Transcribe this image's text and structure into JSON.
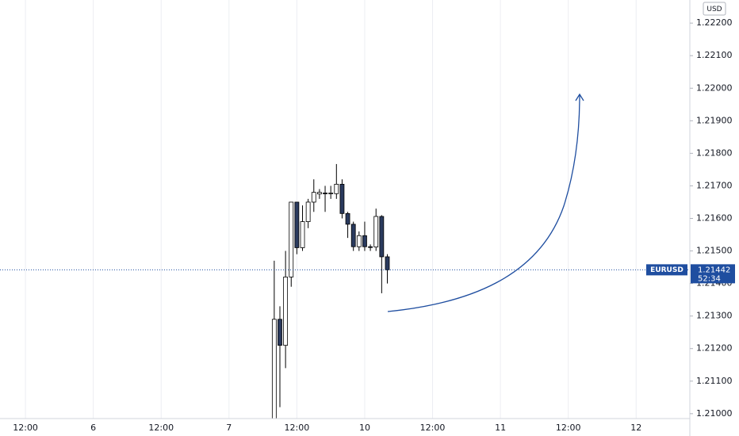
{
  "chart_data": {
    "type": "candlestick",
    "currency": "USD",
    "symbol": "EURUSD",
    "last_price": 1.21442,
    "countdown": "52:34",
    "x": [
      0,
      1,
      2,
      3,
      4,
      5,
      6,
      7,
      8,
      9,
      10,
      11,
      12,
      13,
      14,
      15,
      16,
      17,
      18,
      19,
      20
    ],
    "open": [
      1.2098,
      1.2129,
      1.2121,
      1.2142,
      1.2165,
      1.2151,
      1.2159,
      1.2165,
      1.21675,
      1.21678,
      1.21676,
      1.21676,
      1.21705,
      1.21615,
      1.21582,
      1.21513,
      1.21547,
      1.21513,
      1.21512,
      1.21606,
      1.21482
    ],
    "high": [
      1.2147,
      1.2133,
      1.215,
      1.2165,
      1.2165,
      1.2164,
      1.2166,
      1.2172,
      1.2169,
      1.217,
      1.217,
      1.21767,
      1.2172,
      1.2162,
      1.2159,
      1.2156,
      1.2159,
      1.2152,
      1.2163,
      1.2161,
      1.2149
    ],
    "low": [
      1.2095,
      1.2102,
      1.2114,
      1.2139,
      1.2149,
      1.215,
      1.2157,
      1.2162,
      1.2166,
      1.2162,
      1.2166,
      1.2166,
      1.216,
      1.2154,
      1.215,
      1.215,
      1.215,
      1.215,
      1.215,
      1.2137,
      1.214
    ],
    "close": [
      1.2129,
      1.2121,
      1.2142,
      1.2165,
      1.2151,
      1.2159,
      1.2165,
      1.2168,
      1.2168,
      1.21676,
      1.21678,
      1.21705,
      1.21615,
      1.21582,
      1.21513,
      1.21547,
      1.21513,
      1.21512,
      1.21606,
      1.21482,
      1.21442
    ],
    "up_color": "#ffffff",
    "down_color": "#2a3a5e",
    "wick_color": "#000000",
    "price_line_color": "#1f4ea0",
    "grid": "x",
    "xlim": [
      -48.5,
      73.5
    ],
    "xticks": [
      {
        "value": -44,
        "label": "12:00"
      },
      {
        "value": -32,
        "label": "6"
      },
      {
        "value": -20,
        "label": "12:00"
      },
      {
        "value": -8,
        "label": "7"
      },
      {
        "value": 4,
        "label": "12:00"
      },
      {
        "value": 16,
        "label": "10"
      },
      {
        "value": 28,
        "label": "12:00"
      },
      {
        "value": 40,
        "label": "11"
      },
      {
        "value": 52,
        "label": "12:00"
      },
      {
        "value": 64,
        "label": "12"
      }
    ],
    "ylim": [
      1.20985,
      1.22271
    ],
    "yticks": [
      {
        "value": 1.21,
        "label": "1.21000"
      },
      {
        "value": 1.211,
        "label": "1.21100"
      },
      {
        "value": 1.212,
        "label": "1.21200"
      },
      {
        "value": 1.213,
        "label": "1.21300"
      },
      {
        "value": 1.214,
        "label": "1.21400"
      },
      {
        "value": 1.215,
        "label": "1.21500"
      },
      {
        "value": 1.216,
        "label": "1.21600"
      },
      {
        "value": 1.217,
        "label": "1.21700"
      },
      {
        "value": 1.218,
        "label": "1.21800"
      },
      {
        "value": 1.219,
        "label": "1.21900"
      },
      {
        "value": 1.22,
        "label": "1.22000"
      },
      {
        "value": 1.221,
        "label": "1.22100"
      },
      {
        "value": 1.222,
        "label": "1.22200"
      }
    ]
  }
}
